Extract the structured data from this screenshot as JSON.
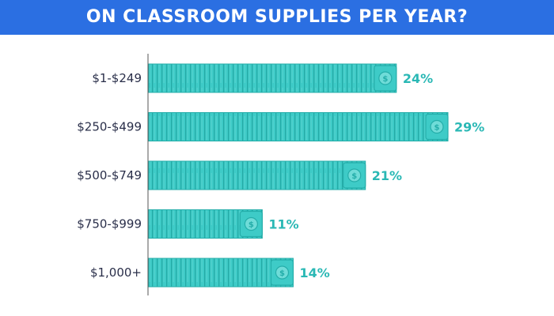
{
  "header": {
    "title": "ON CLASSROOM SUPPLIES PER YEAR?"
  },
  "colors": {
    "header_bg": "#2b6fe2",
    "bar_fill": "#3ecbc7",
    "bar_stripe": "#25aeaa",
    "value_text": "#2ab8b5",
    "category_text": "#2a2f4a",
    "axis": "#555555"
  },
  "chart_data": {
    "type": "bar",
    "orientation": "horizontal",
    "categories": [
      "$1-$249",
      "$250-$499",
      "$500-$749",
      "$750-$999",
      "$1,000+"
    ],
    "values": [
      24,
      29,
      21,
      11,
      14
    ],
    "value_labels": [
      "24%",
      "29%",
      "21%",
      "11%",
      "14%"
    ],
    "unit": "%",
    "xlim": [
      0,
      29
    ],
    "grid": false,
    "bar_style": "stacked-dollar-bills"
  }
}
